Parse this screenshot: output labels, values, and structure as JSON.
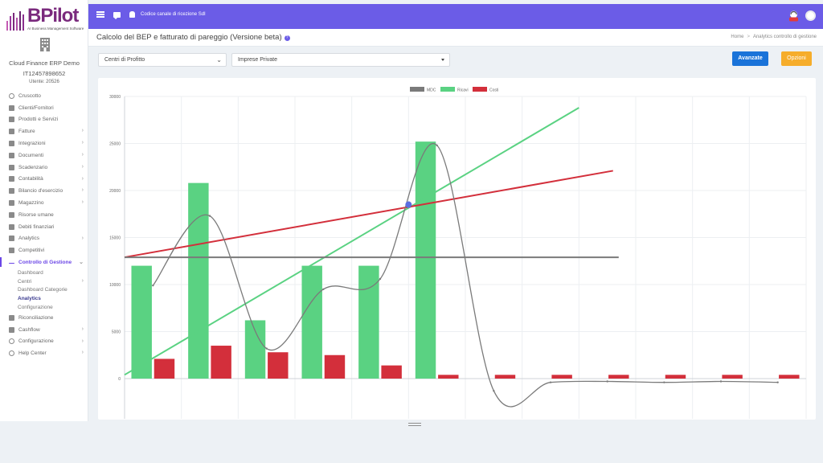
{
  "brand": {
    "name": "BPilot",
    "tagline": "AI Business Management Software"
  },
  "company": {
    "name": "Cloud Finance ERP Demo",
    "vat": "IT12457898652",
    "user": "Utente: 20526"
  },
  "topbar": {
    "code": "Codice canale di ricezione SdI",
    "accent": "#6b5ce7"
  },
  "page": {
    "title": "Calcolo del BEP e fatturato di pareggio (Versione beta)"
  },
  "breadcrumb": [
    "Home",
    "Analytics controllo di gestione"
  ],
  "filters": {
    "centri": "Centri di Profitto",
    "imprese": "Imprese Private"
  },
  "buttons": {
    "avanzate": "Avanzate",
    "opzioni": "Opzioni"
  },
  "menu": [
    {
      "label": "Cruscotto",
      "icon": "dashboard-icon",
      "chevron": false
    },
    {
      "label": "Clienti/Fornitori",
      "icon": "user-icon",
      "chevron": false
    },
    {
      "label": "Prodotti e Servizi",
      "icon": "basket-icon",
      "chevron": false
    },
    {
      "label": "Fatture",
      "icon": "document-icon",
      "chevron": true
    },
    {
      "label": "Integrazioni",
      "icon": "document-icon",
      "chevron": true
    },
    {
      "label": "Documenti",
      "icon": "copy-icon",
      "chevron": true
    },
    {
      "label": "Scadenzario",
      "icon": "money-icon",
      "chevron": true
    },
    {
      "label": "Contabilità",
      "icon": "book-icon",
      "chevron": true
    },
    {
      "label": "Bilancio d'esercizio",
      "icon": "scale-icon",
      "chevron": true
    },
    {
      "label": "Magazzino",
      "icon": "warehouse-icon",
      "chevron": true
    },
    {
      "label": "Risorse umane",
      "icon": "user-icon",
      "chevron": false
    },
    {
      "label": "Debiti finanziari",
      "icon": "money-icon",
      "chevron": false
    },
    {
      "label": "Analytics",
      "icon": "chart-icon",
      "chevron": true
    },
    {
      "label": "Competitivi",
      "icon": "flag-icon",
      "chevron": false
    },
    {
      "label": "Controllo di Gestione",
      "icon": "arrow-icon",
      "chevron": true,
      "active": true
    }
  ],
  "submenu": [
    {
      "label": "Dashboard",
      "chevron": false
    },
    {
      "label": "Centri",
      "chevron": true
    },
    {
      "label": "Dashboard Categorie",
      "chevron": false
    },
    {
      "label": "Analytics",
      "chevron": false,
      "bold": true
    },
    {
      "label": "Configurazione",
      "chevron": false
    }
  ],
  "menu2": [
    {
      "label": "Riconciliazione",
      "icon": "bank-icon",
      "chevron": false
    },
    {
      "label": "Cashflow",
      "icon": "money-icon",
      "chevron": true
    },
    {
      "label": "Configurazione",
      "icon": "gear-icon",
      "chevron": true
    },
    {
      "label": "Help Center",
      "icon": "help-icon",
      "chevron": true
    }
  ],
  "chart_data": {
    "type": "bar",
    "title": "",
    "xlabel": "",
    "ylabel": "",
    "ylim": [
      0,
      30000
    ],
    "yticks": [
      0,
      5000,
      10000,
      15000,
      20000,
      25000,
      30000
    ],
    "grid": true,
    "legend_position": "top-center",
    "legend": [
      {
        "name": "MDC",
        "color": "#7a7a7a"
      },
      {
        "name": "Ricavi",
        "color": "#5ad282"
      },
      {
        "name": "Costi",
        "color": "#d32f3b"
      }
    ],
    "n_categories": 12,
    "series": [
      {
        "name": "Ricavi",
        "type": "bar",
        "color": "#5ad282",
        "values": [
          12000,
          20800,
          6200,
          12000,
          12000,
          25200,
          0,
          0,
          0,
          0,
          0,
          0
        ]
      },
      {
        "name": "Costi",
        "type": "bar",
        "color": "#d32f3b",
        "values": [
          2100,
          3500,
          2800,
          2500,
          1400,
          400,
          400,
          400,
          400,
          400,
          400,
          400
        ]
      },
      {
        "name": "MDC",
        "type": "line",
        "color": "#7a7a7a",
        "values": [
          9900,
          17300,
          3200,
          9500,
          10600,
          24800,
          -1300,
          -400,
          -300,
          -400,
          -300,
          -400
        ]
      }
    ],
    "lines": [
      {
        "color": "#5ad282",
        "from": [
          0,
          400
        ],
        "to": [
          8,
          28800
        ]
      },
      {
        "color": "#d32f3b",
        "from": [
          0,
          12900
        ],
        "to": [
          8.6,
          22100
        ]
      },
      {
        "color": "#7a7a7a",
        "from": [
          0,
          12900
        ],
        "to": [
          8.7,
          12900
        ]
      }
    ],
    "bep_point": {
      "x": 5,
      "y": 18500,
      "color": "#5b6ee1"
    }
  }
}
